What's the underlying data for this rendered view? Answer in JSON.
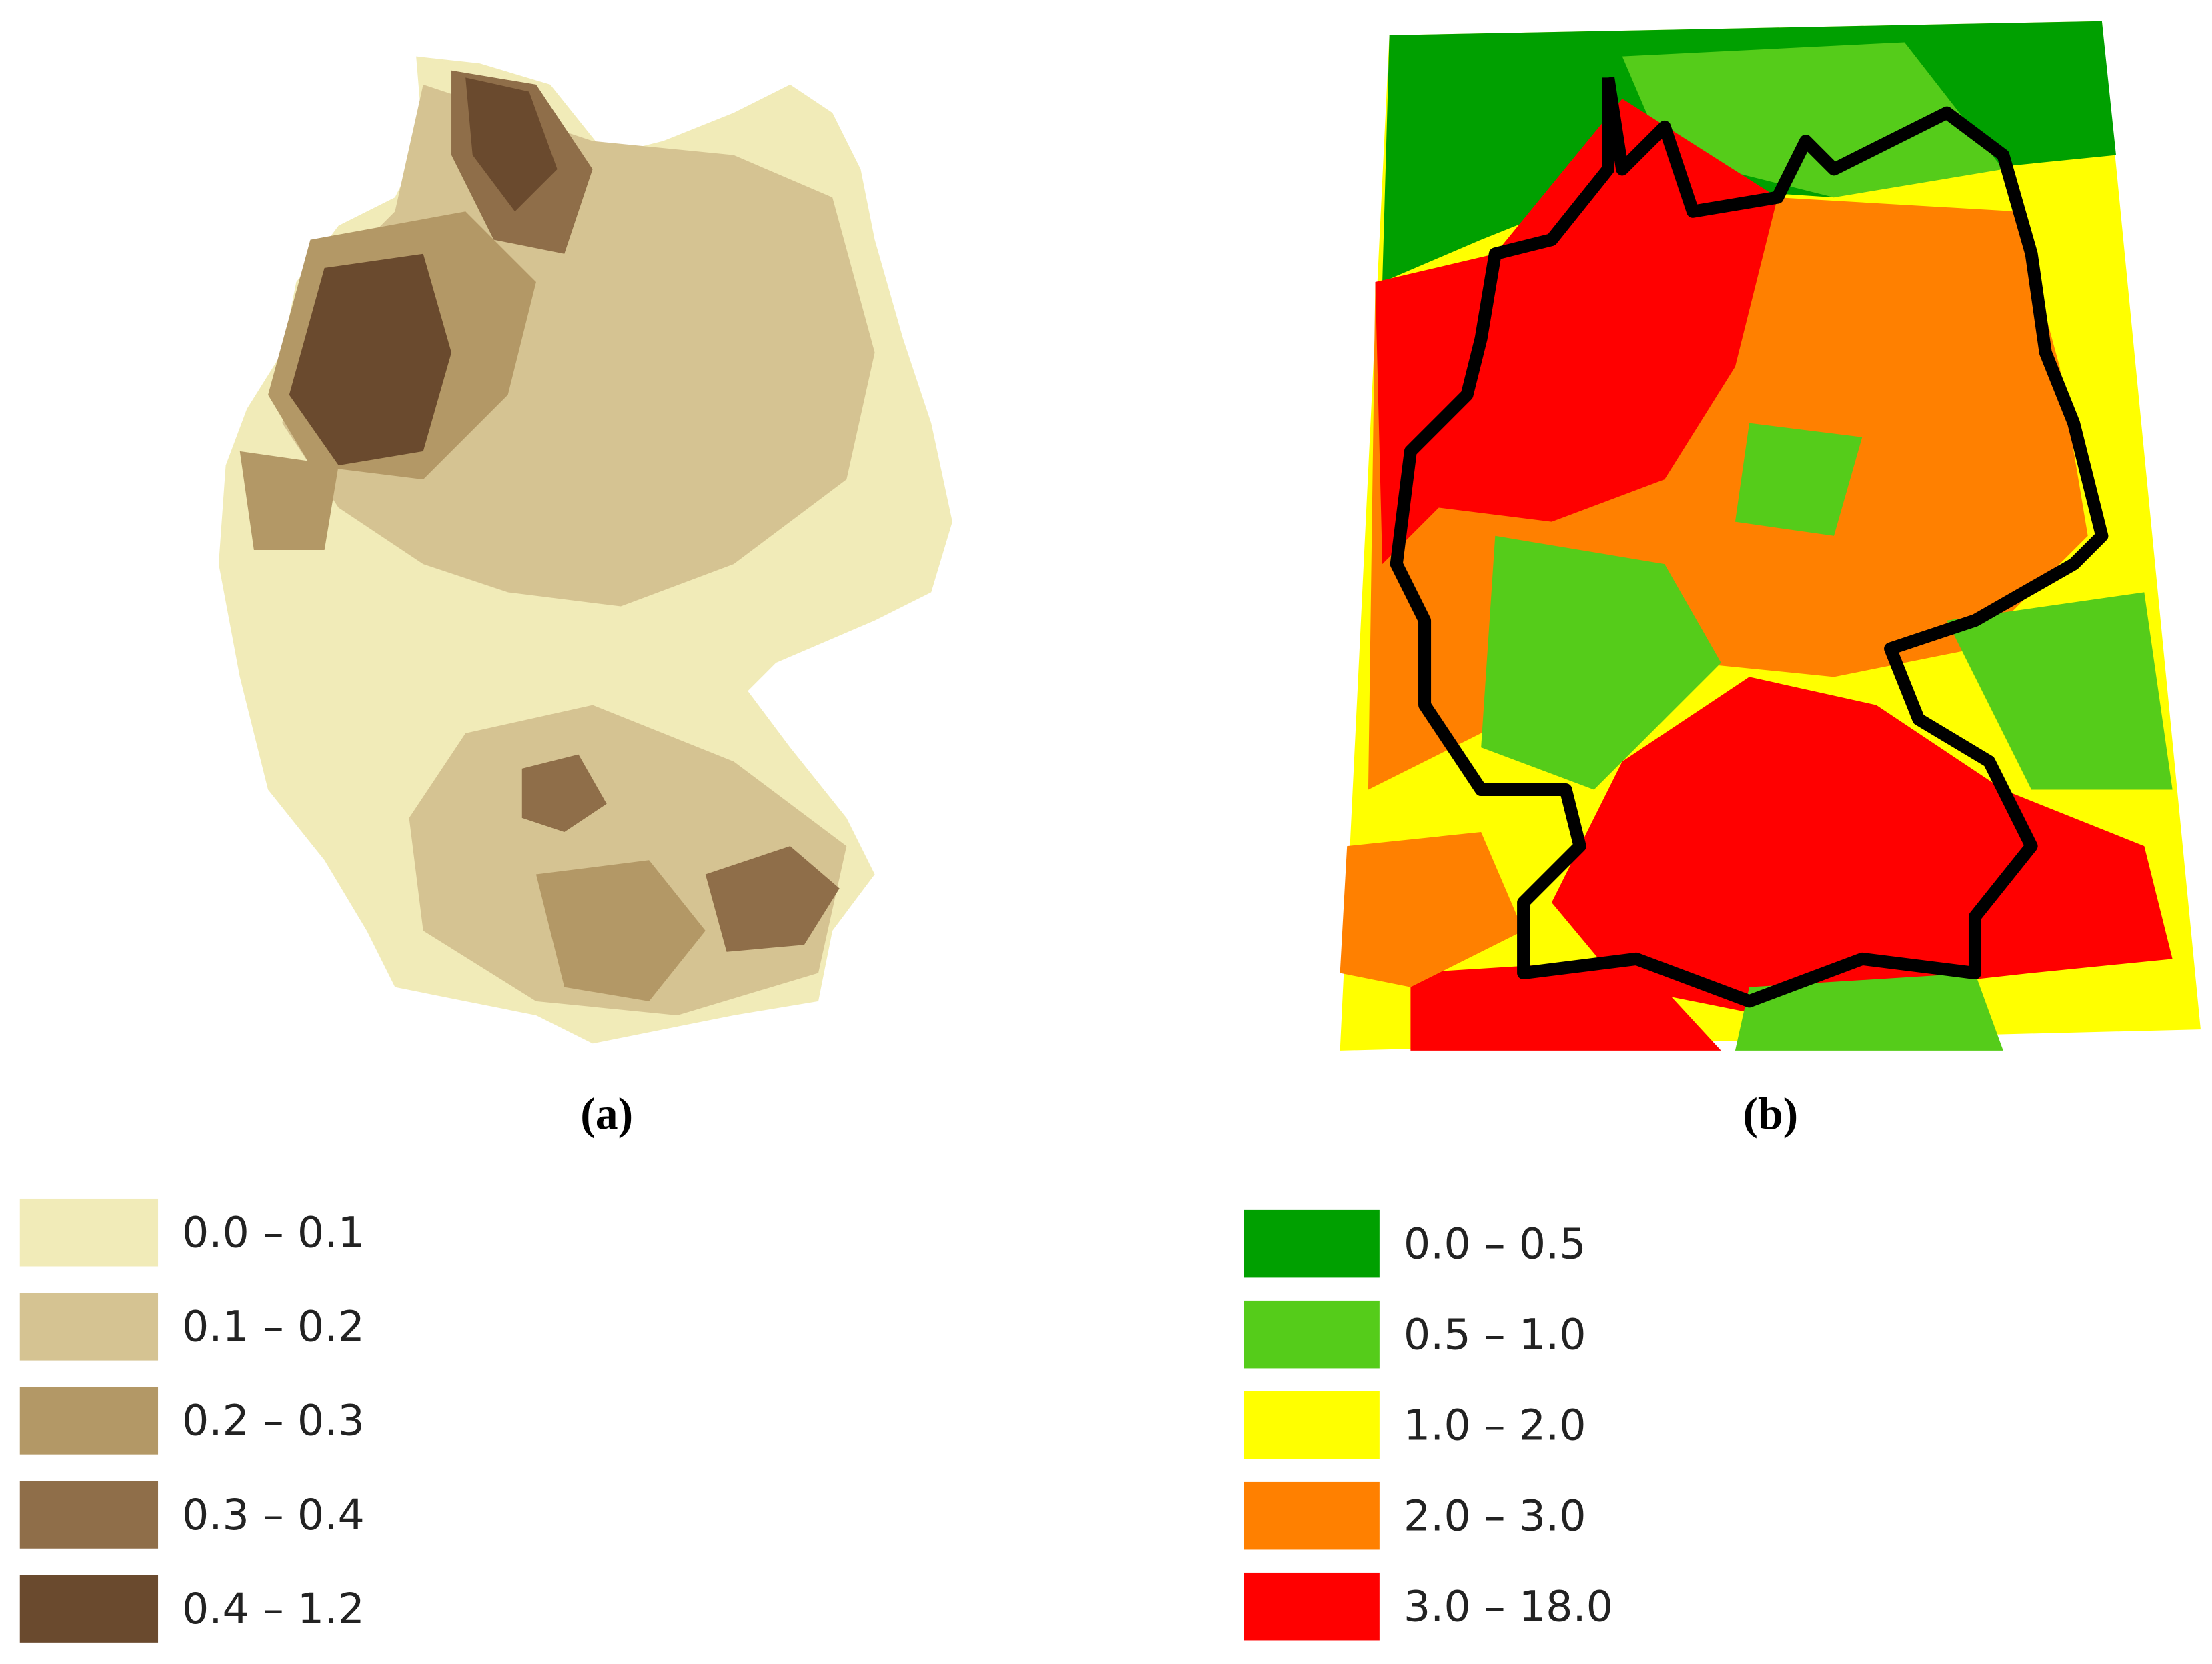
{
  "panels": [
    {
      "label": "(a)",
      "legend": [
        {
          "label": "0.0 – 0.1",
          "color": "#f1ebb8"
        },
        {
          "label": "0.1 – 0.2",
          "color": "#d5c392"
        },
        {
          "label": "0.2 – 0.3",
          "color": "#b39866"
        },
        {
          "label": "0.3 – 0.4",
          "color": "#8f6e49"
        },
        {
          "label": "0.4 – 1.2",
          "color": "#6a4a2e"
        }
      ]
    },
    {
      "label": "(b)",
      "legend": [
        {
          "label": "0.0 – 0.5",
          "color": "#00a000"
        },
        {
          "label": "0.5 – 1.0",
          "color": "#55cc1a"
        },
        {
          "label": "1.0 – 2.0",
          "color": "#ffff00"
        },
        {
          "label": "2.0 – 3.0",
          "color": "#ff8000"
        },
        {
          "label": "3.0 – 18.0",
          "color": "#ff0000"
        }
      ]
    }
  ]
}
